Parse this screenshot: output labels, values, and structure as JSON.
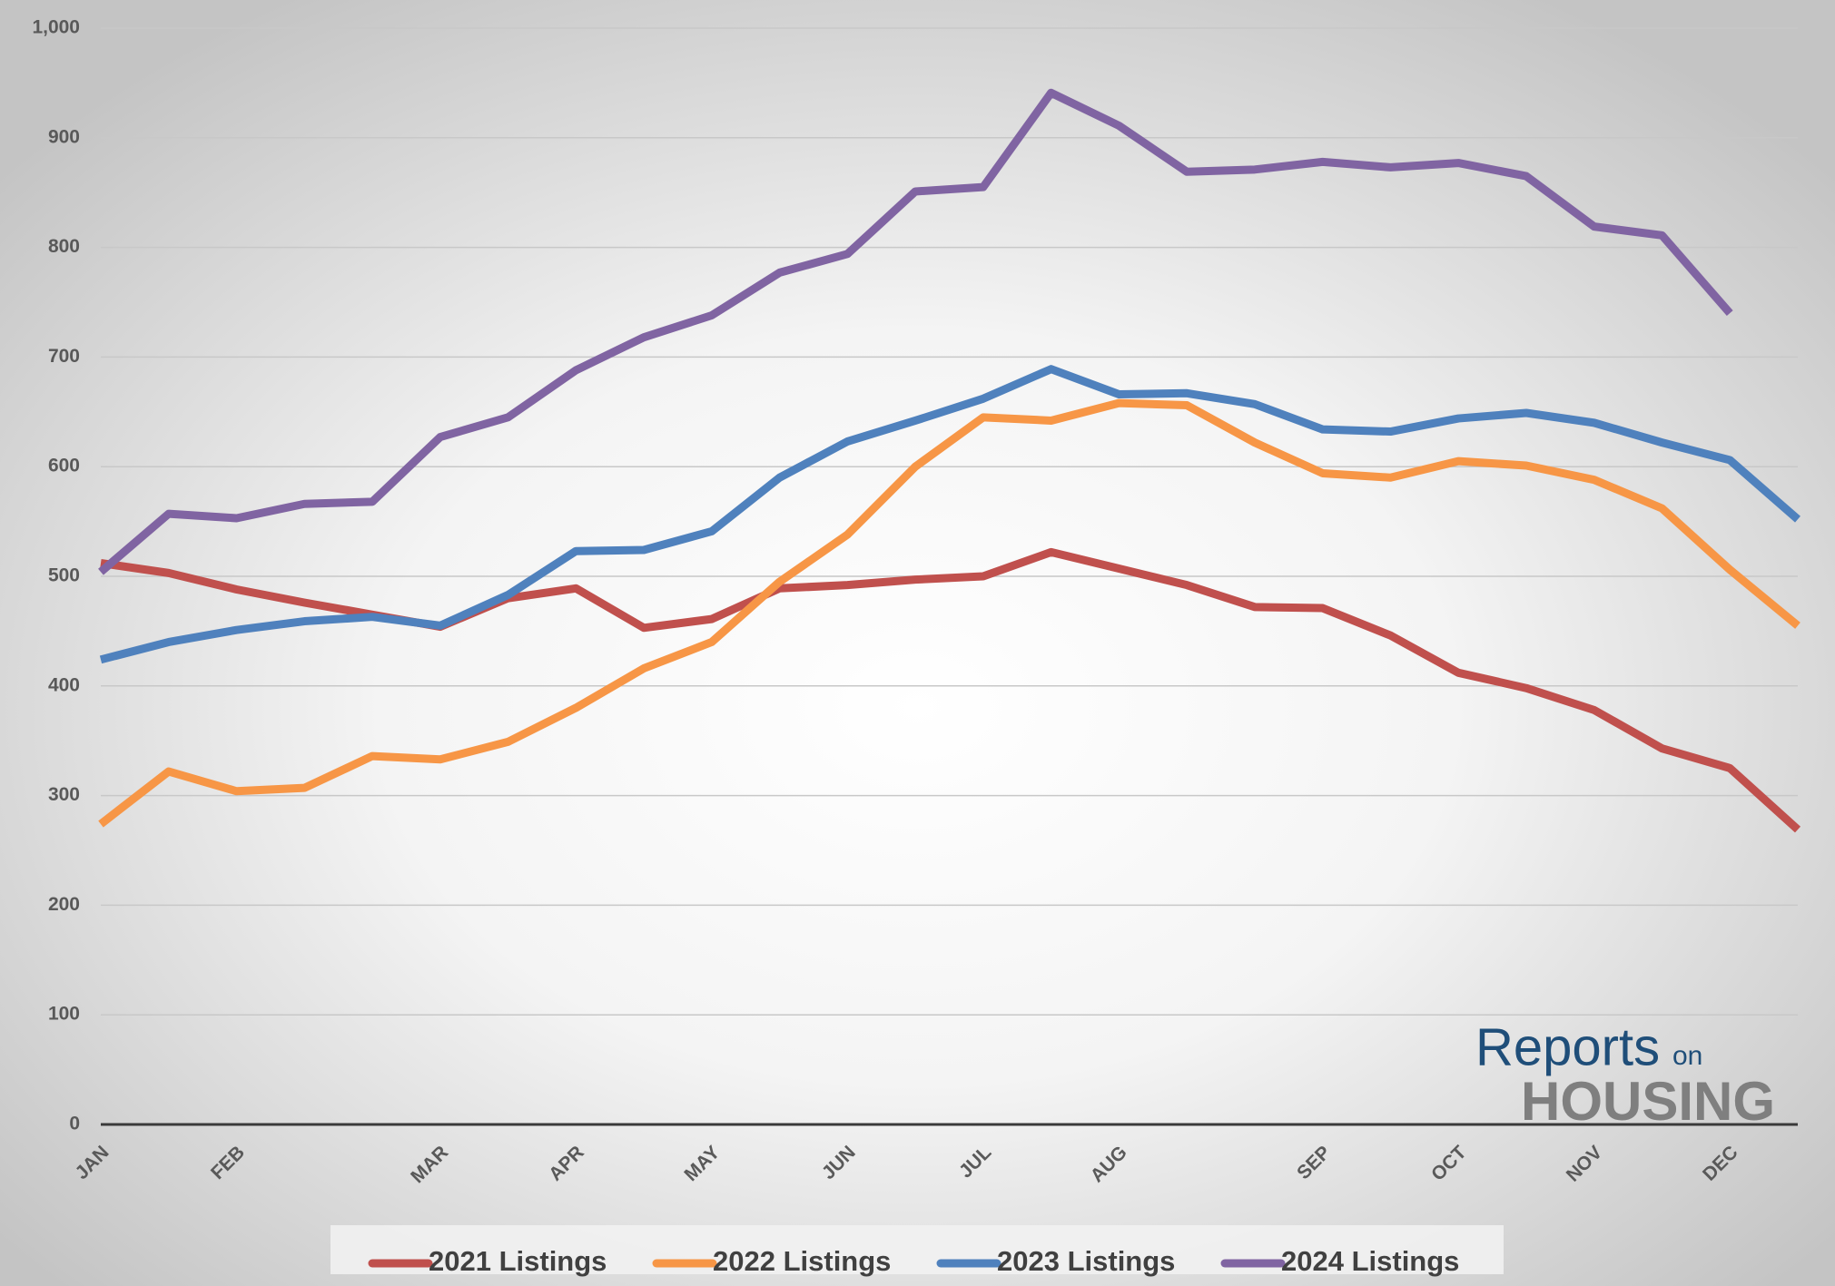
{
  "chart_data": {
    "type": "line",
    "categories": [
      "JAN",
      null,
      "FEB",
      null,
      null,
      "MAR",
      null,
      "APR",
      null,
      "MAY",
      null,
      "JUN",
      null,
      "JUL",
      null,
      "AUG",
      null,
      null,
      "SEP",
      null,
      "OCT",
      null,
      "NOV",
      null,
      "DEC",
      null
    ],
    "series": [
      {
        "name": "2021 Listings",
        "color": "#c0504d",
        "values": [
          512,
          503,
          488,
          476,
          465,
          454,
          480,
          489,
          453,
          461,
          489,
          492,
          497,
          500,
          522,
          507,
          492,
          472,
          471,
          446,
          412,
          398,
          378,
          343,
          325,
          269
        ]
      },
      {
        "name": "2022 Listings",
        "color": "#f79646",
        "values": [
          274,
          322,
          304,
          307,
          336,
          333,
          349,
          380,
          416,
          440,
          495,
          538,
          600,
          645,
          642,
          658,
          656,
          622,
          594,
          590,
          605,
          601,
          588,
          562,
          506,
          455
        ]
      },
      {
        "name": "2023 Listings",
        "color": "#4f81bd",
        "values": [
          424,
          440,
          451,
          459,
          463,
          455,
          483,
          523,
          524,
          541,
          590,
          623,
          642,
          662,
          689,
          666,
          667,
          657,
          634,
          632,
          644,
          649,
          640,
          622,
          606,
          552
        ]
      },
      {
        "name": "2024 Listings",
        "color": "#8064a2",
        "values": [
          504,
          557,
          553,
          566,
          568,
          627,
          645,
          688,
          718,
          738,
          777,
          794,
          851,
          855,
          941,
          911,
          869,
          871,
          878,
          873,
          877,
          865,
          819,
          811,
          740,
          null
        ]
      }
    ],
    "ylim": [
      0,
      1000
    ],
    "yticks": [
      0,
      100,
      200,
      300,
      400,
      500,
      600,
      700,
      800,
      900,
      {
        "value": 1000,
        "label": "1,000"
      }
    ],
    "grid": true,
    "legend": "bottom"
  },
  "logo": {
    "brand": "Reports",
    "small": "on",
    "sub": "HOUSING"
  }
}
